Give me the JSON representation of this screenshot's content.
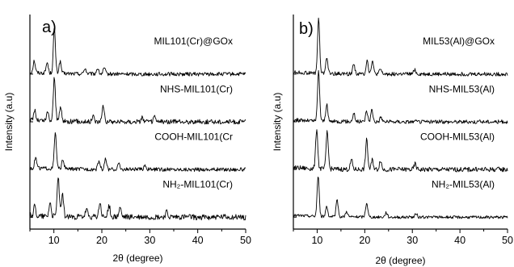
{
  "chart_data": [
    {
      "type": "line",
      "panel_label": "a)",
      "xlabel": "2θ (degree)",
      "ylabel": "Intensity (a.u)",
      "xlim": [
        5,
        50
      ],
      "xticks": [
        10,
        20,
        30,
        40,
        50
      ],
      "series": [
        {
          "name": "MIL101(Cr)@GOx",
          "baseline": 4.0,
          "noise": 0.04,
          "peaks": [
            [
              5.9,
              0.25
            ],
            [
              8.6,
              0.22
            ],
            [
              10.1,
              0.95
            ],
            [
              11.3,
              0.25
            ],
            [
              16.5,
              0.12
            ],
            [
              19.1,
              0.12
            ],
            [
              20.5,
              0.12
            ]
          ]
        },
        {
          "name": "NHS-MIL101(Cr)",
          "baseline": 3.0,
          "noise": 0.05,
          "peaks": [
            [
              6.0,
              0.22
            ],
            [
              8.7,
              0.18
            ],
            [
              10.1,
              0.92
            ],
            [
              11.4,
              0.3
            ],
            [
              18.2,
              0.12
            ],
            [
              20.3,
              0.35
            ],
            [
              28.4,
              0.1
            ],
            [
              31.0,
              0.1
            ]
          ]
        },
        {
          "name": "COOH-MIL101(Cr",
          "baseline": 2.0,
          "noise": 0.04,
          "peaks": [
            [
              6.2,
              0.22
            ],
            [
              10.3,
              0.75
            ],
            [
              11.9,
              0.2
            ],
            [
              19.4,
              0.18
            ],
            [
              20.8,
              0.22
            ],
            [
              23.5,
              0.12
            ],
            [
              29.0,
              0.1
            ]
          ]
        },
        {
          "name": "NH₂-MIL101(Cr)",
          "baseline": 1.0,
          "noise": 0.06,
          "peaks": [
            [
              6.0,
              0.2
            ],
            [
              9.2,
              0.3
            ],
            [
              10.9,
              0.85
            ],
            [
              11.8,
              0.45
            ],
            [
              16.8,
              0.15
            ],
            [
              19.6,
              0.3
            ],
            [
              21.5,
              0.25
            ],
            [
              23.8,
              0.2
            ],
            [
              33.5,
              0.1
            ]
          ]
        }
      ]
    },
    {
      "type": "line",
      "panel_label": "b)",
      "xlabel": "2θ (degree)",
      "ylabel": "Intensity (a.u)",
      "xlim": [
        5,
        50
      ],
      "xticks": [
        10,
        20,
        30,
        40,
        50
      ],
      "series": [
        {
          "name": "MIL53(Al)@GOx",
          "baseline": 4.0,
          "noise": 0.04,
          "peaks": [
            [
              10.3,
              1.15
            ],
            [
              12.0,
              0.35
            ],
            [
              17.7,
              0.22
            ],
            [
              20.5,
              0.3
            ],
            [
              21.6,
              0.28
            ],
            [
              23.3,
              0.1
            ],
            [
              30.5,
              0.1
            ]
          ]
        },
        {
          "name": "NHS-MIL53(Al)",
          "baseline": 3.0,
          "noise": 0.04,
          "peaks": [
            [
              10.3,
              1.05
            ],
            [
              12.0,
              0.35
            ],
            [
              17.7,
              0.18
            ],
            [
              20.4,
              0.22
            ],
            [
              21.5,
              0.25
            ],
            [
              23.4,
              0.1
            ]
          ]
        },
        {
          "name": "COOH-MIL53(Al)",
          "baseline": 2.0,
          "noise": 0.05,
          "peaks": [
            [
              9.9,
              0.85
            ],
            [
              12.1,
              0.8
            ],
            [
              17.2,
              0.2
            ],
            [
              20.4,
              0.62
            ],
            [
              21.6,
              0.2
            ],
            [
              23.3,
              0.2
            ],
            [
              30.6,
              0.12
            ]
          ]
        },
        {
          "name": "NH₂-MIL53(Al)",
          "baseline": 1.0,
          "noise": 0.03,
          "peaks": [
            [
              10.2,
              0.85
            ],
            [
              12.0,
              0.22
            ],
            [
              14.2,
              0.35
            ],
            [
              16.2,
              0.12
            ],
            [
              20.4,
              0.3
            ],
            [
              24.5,
              0.1
            ],
            [
              30.8,
              0.08
            ]
          ]
        }
      ]
    }
  ]
}
